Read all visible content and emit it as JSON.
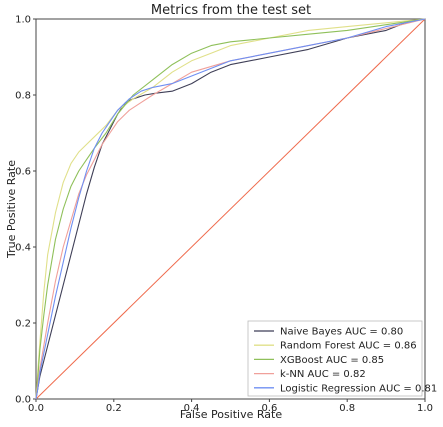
{
  "chart_data": {
    "type": "line",
    "title": "Metrics from the test set",
    "xlabel": "False Positive Rate",
    "ylabel": "True Positive Rate",
    "xlim": [
      0.0,
      1.0
    ],
    "ylim": [
      0.0,
      1.0
    ],
    "grid": false,
    "legend_position": "lower-right",
    "x_ticks": [
      "0.0",
      "0.2",
      "0.4",
      "0.6",
      "0.8",
      "1.0"
    ],
    "y_ticks": [
      "0.0",
      "0.2",
      "0.4",
      "0.6",
      "0.8",
      "1.0"
    ],
    "reference_line": {
      "x": [
        0.0,
        1.0
      ],
      "y": [
        0.0,
        1.0
      ],
      "color": "#ef6a4c"
    },
    "series": [
      {
        "name": "Naive Bayes AUC = 0.80",
        "color": "#3f3f57",
        "x": [
          0.0,
          0.005,
          0.01,
          0.02,
          0.03,
          0.05,
          0.07,
          0.09,
          0.11,
          0.13,
          0.15,
          0.17,
          0.19,
          0.21,
          0.23,
          0.25,
          0.28,
          0.31,
          0.35,
          0.4,
          0.45,
          0.5,
          0.6,
          0.7,
          0.8,
          0.9,
          0.95,
          1.0
        ],
        "y": [
          0.0,
          0.03,
          0.06,
          0.1,
          0.14,
          0.22,
          0.3,
          0.38,
          0.46,
          0.54,
          0.61,
          0.67,
          0.71,
          0.75,
          0.78,
          0.79,
          0.8,
          0.805,
          0.81,
          0.83,
          0.86,
          0.88,
          0.9,
          0.92,
          0.95,
          0.97,
          0.99,
          1.0
        ]
      },
      {
        "name": "Random Forest AUC = 0.86",
        "color": "#e0e08a",
        "x": [
          0.0,
          0.005,
          0.01,
          0.02,
          0.03,
          0.05,
          0.07,
          0.09,
          0.11,
          0.13,
          0.15,
          0.18,
          0.21,
          0.25,
          0.3,
          0.35,
          0.4,
          0.45,
          0.5,
          0.6,
          0.7,
          0.8,
          0.9,
          1.0
        ],
        "y": [
          0.0,
          0.08,
          0.15,
          0.28,
          0.38,
          0.49,
          0.57,
          0.62,
          0.65,
          0.67,
          0.69,
          0.72,
          0.76,
          0.79,
          0.82,
          0.86,
          0.89,
          0.91,
          0.93,
          0.95,
          0.97,
          0.98,
          0.99,
          1.0
        ]
      },
      {
        "name": "XGBoost AUC = 0.85",
        "color": "#8fc05a",
        "x": [
          0.0,
          0.005,
          0.01,
          0.02,
          0.03,
          0.05,
          0.07,
          0.09,
          0.11,
          0.13,
          0.15,
          0.18,
          0.21,
          0.25,
          0.3,
          0.35,
          0.4,
          0.45,
          0.5,
          0.6,
          0.7,
          0.8,
          0.9,
          1.0
        ],
        "y": [
          0.0,
          0.06,
          0.13,
          0.22,
          0.3,
          0.42,
          0.5,
          0.56,
          0.6,
          0.63,
          0.66,
          0.7,
          0.75,
          0.8,
          0.84,
          0.88,
          0.91,
          0.93,
          0.94,
          0.95,
          0.96,
          0.97,
          0.985,
          1.0
        ]
      },
      {
        "name": "k-NN AUC = 0.82",
        "color": "#f0a09a",
        "x": [
          0.0,
          0.005,
          0.01,
          0.02,
          0.03,
          0.05,
          0.07,
          0.09,
          0.11,
          0.13,
          0.15,
          0.17,
          0.19,
          0.21,
          0.24,
          0.27,
          0.3,
          0.35,
          0.4,
          0.5,
          0.6,
          0.7,
          0.8,
          0.9,
          1.0
        ],
        "y": [
          0.0,
          0.04,
          0.08,
          0.14,
          0.2,
          0.31,
          0.4,
          0.47,
          0.54,
          0.59,
          0.63,
          0.67,
          0.7,
          0.73,
          0.76,
          0.78,
          0.8,
          0.83,
          0.86,
          0.89,
          0.91,
          0.93,
          0.95,
          0.975,
          1.0
        ]
      },
      {
        "name": "Logistic Regression AUC = 0.81",
        "color": "#6f8ff2",
        "x": [
          0.0,
          0.005,
          0.01,
          0.02,
          0.03,
          0.05,
          0.07,
          0.09,
          0.11,
          0.13,
          0.15,
          0.17,
          0.19,
          0.21,
          0.24,
          0.27,
          0.3,
          0.35,
          0.4,
          0.45,
          0.5,
          0.6,
          0.7,
          0.8,
          0.9,
          1.0
        ],
        "y": [
          0.0,
          0.03,
          0.07,
          0.12,
          0.17,
          0.27,
          0.36,
          0.45,
          0.53,
          0.6,
          0.66,
          0.7,
          0.73,
          0.76,
          0.79,
          0.81,
          0.82,
          0.83,
          0.85,
          0.87,
          0.89,
          0.91,
          0.93,
          0.95,
          0.98,
          1.0
        ]
      }
    ]
  }
}
